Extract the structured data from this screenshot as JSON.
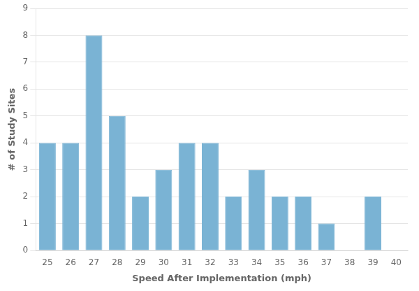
{
  "chart_data": {
    "type": "bar",
    "categories": [
      25,
      26,
      27,
      28,
      29,
      30,
      31,
      32,
      33,
      34,
      35,
      36,
      37,
      38,
      39,
      40
    ],
    "values": [
      4,
      4,
      8,
      5,
      2,
      3,
      4,
      4,
      2,
      3,
      2,
      2,
      1,
      0,
      2,
      0
    ],
    "color": "#7ab3d4",
    "xlabel": "Speed After Implementation (mph)",
    "ylabel": "# of Study Sites",
    "ylim": [
      0,
      9
    ],
    "yticks": [
      0,
      1,
      2,
      3,
      4,
      5,
      6,
      7,
      8,
      9
    ],
    "grid": true
  }
}
